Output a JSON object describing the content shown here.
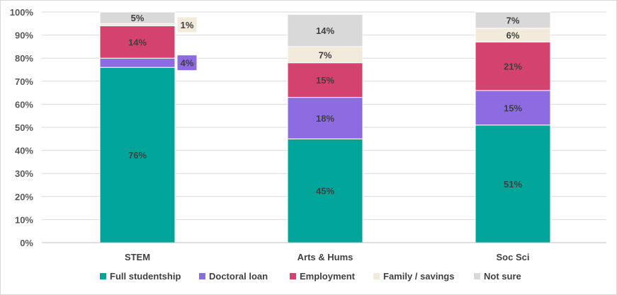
{
  "chart_data": {
    "type": "bar",
    "stacked": true,
    "title": "",
    "xlabel": "",
    "ylabel": "",
    "categories": [
      "STEM",
      "Arts & Hums",
      "Soc Sci"
    ],
    "series": [
      {
        "name": "Full studentship",
        "color": "#00a499",
        "values": [
          76,
          45,
          51
        ],
        "labels": [
          "76%",
          "45%",
          "51%"
        ]
      },
      {
        "name": "Doctoral loan",
        "color": "#8c6ce0",
        "values": [
          4,
          18,
          15
        ],
        "labels": [
          "4%",
          "18%",
          "15%"
        ]
      },
      {
        "name": "Employment",
        "color": "#d4426e",
        "values": [
          14,
          15,
          21
        ],
        "labels": [
          "14%",
          "15%",
          "21%"
        ]
      },
      {
        "name": "Family / savings",
        "color": "#f2ebdc",
        "values": [
          1,
          7,
          6
        ],
        "labels": [
          "1%",
          "7%",
          "6%"
        ]
      },
      {
        "name": "Not sure",
        "color": "#d9d9d9",
        "values": [
          5,
          14,
          7
        ],
        "labels": [
          "5%",
          "14%",
          "7%"
        ]
      }
    ],
    "y_ticks": [
      "0%",
      "10%",
      "20%",
      "30%",
      "40%",
      "50%",
      "60%",
      "70%",
      "80%",
      "90%",
      "100%"
    ],
    "ylim": [
      0,
      100
    ],
    "grid": true,
    "legend_position": "bottom"
  }
}
